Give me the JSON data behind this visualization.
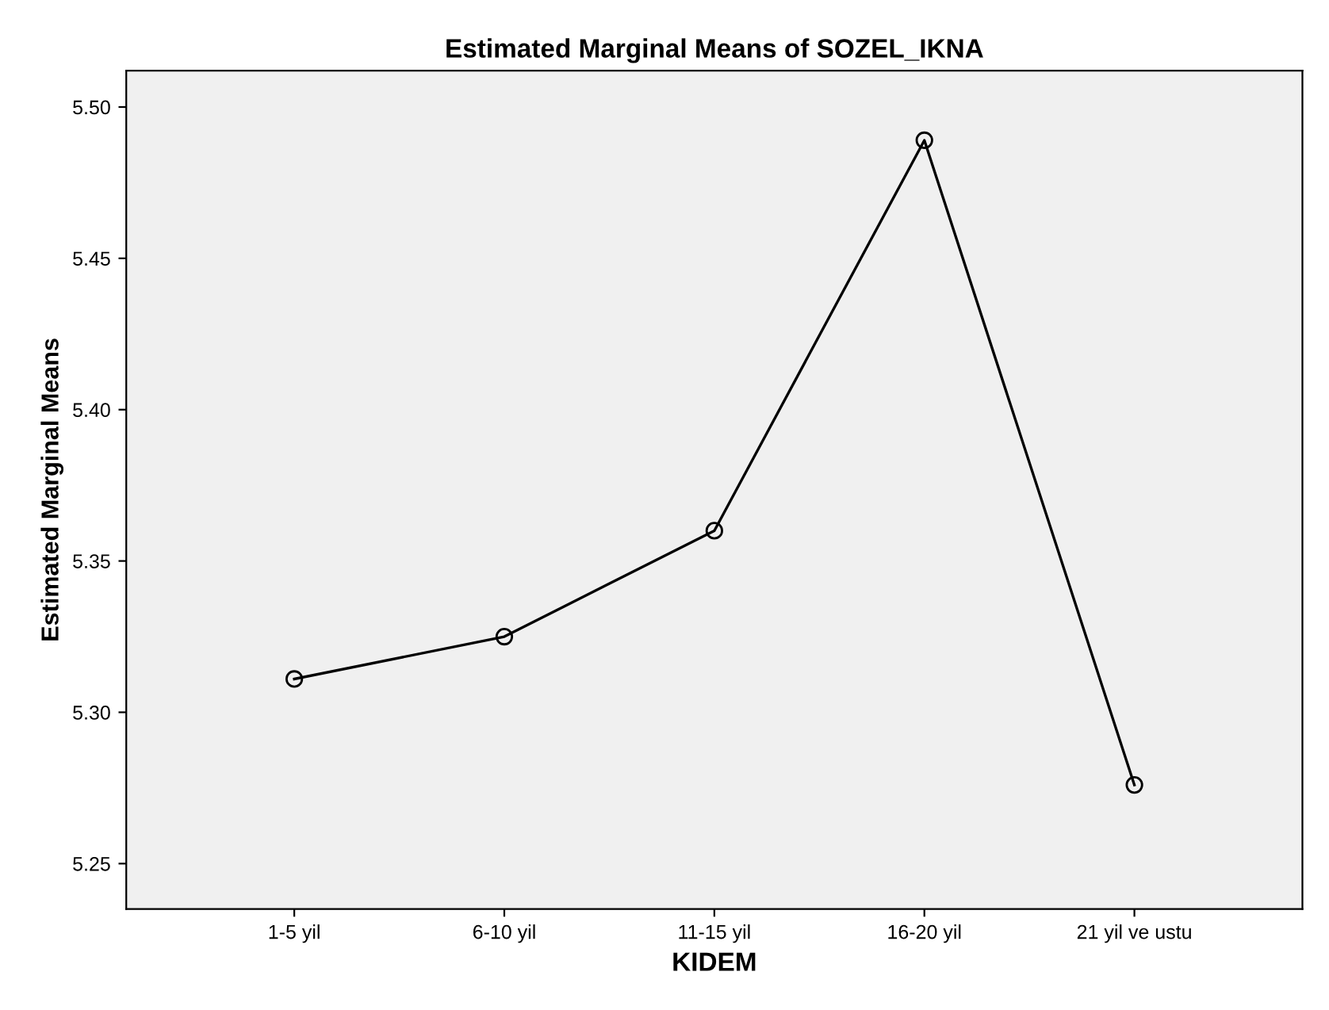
{
  "chart_data": {
    "type": "line",
    "title": "Estimated Marginal Means of SOZEL_IKNA",
    "xlabel": "KIDEM",
    "ylabel": "Estimated Marginal Means",
    "categories": [
      "1-5 yil",
      "6-10 yil",
      "11-15 yil",
      "16-20 yil",
      "21 yil ve ustu"
    ],
    "series": [
      {
        "color": "#000000",
        "values": [
          5.311,
          5.325,
          5.36,
          5.489,
          5.276
        ]
      }
    ],
    "ylim": [
      5.235,
      5.512
    ],
    "yticks": [
      {
        "value": 5.25,
        "label": "5.25"
      },
      {
        "value": 5.3,
        "label": "5.30"
      },
      {
        "value": 5.35,
        "label": "5.35"
      },
      {
        "value": 5.4,
        "label": "5.40"
      },
      {
        "value": 5.45,
        "label": "5.45"
      },
      {
        "value": 5.5,
        "label": "5.50"
      }
    ],
    "marker": "circle",
    "line_style": "solid",
    "grid": false,
    "legend": false
  }
}
